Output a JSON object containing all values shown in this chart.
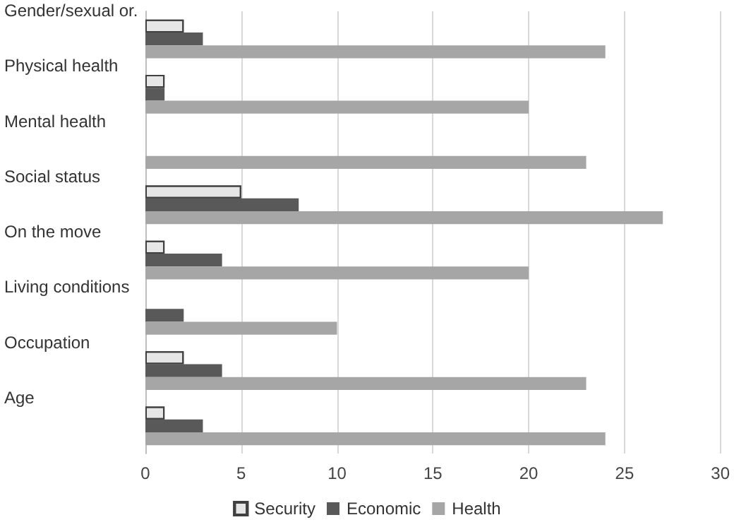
{
  "chart_data": {
    "type": "bar",
    "orientation": "horizontal",
    "categories": [
      "Gender/sexual or.",
      "Physical health",
      "Mental health",
      "Social status",
      "On the move",
      "Living conditions",
      "Occupation",
      "Age"
    ],
    "series": [
      {
        "name": "Security",
        "color": "#e6e6e6",
        "values": [
          2,
          1,
          0,
          5,
          1,
          0,
          2,
          1
        ]
      },
      {
        "name": "Economic",
        "color": "#595959",
        "values": [
          3,
          1,
          0,
          8,
          4,
          2,
          4,
          3
        ]
      },
      {
        "name": "Health",
        "color": "#a6a6a6",
        "values": [
          24,
          20,
          23,
          27,
          20,
          10,
          23,
          24
        ]
      }
    ],
    "xlim": [
      0,
      30
    ],
    "xticks": [
      0,
      5,
      10,
      15,
      20,
      25,
      30
    ],
    "grid": "x",
    "legend": "bottom"
  }
}
